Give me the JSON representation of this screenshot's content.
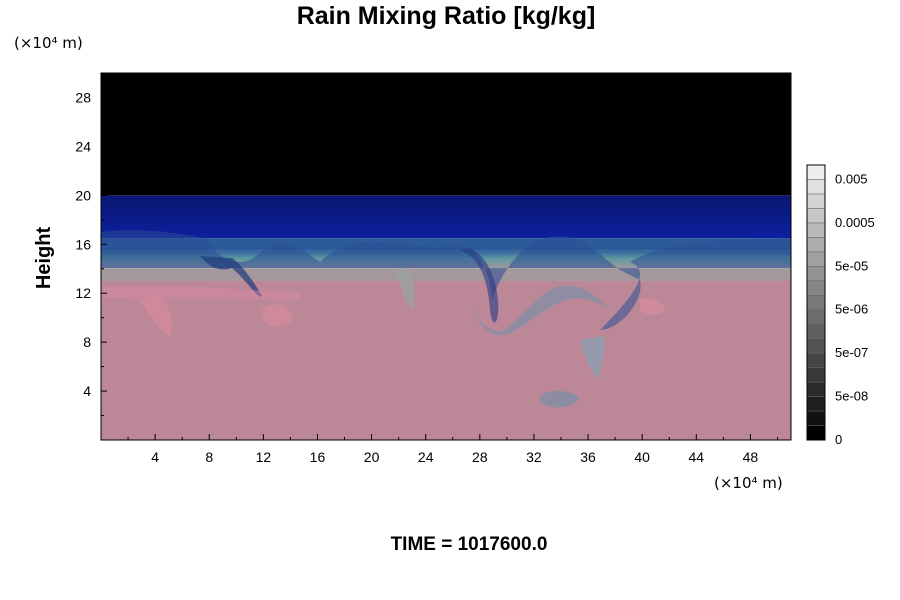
{
  "chart_data": {
    "type": "heatmap",
    "title": "Rain Mixing Ratio [kg/kg]",
    "ylabel": "Height",
    "x_unit_label": "(×10⁴ m)",
    "y_unit_label": "(×10⁴ m)",
    "xlim": [
      0,
      51
    ],
    "ylim": [
      0,
      30
    ],
    "x_ticks": [
      4,
      8,
      12,
      16,
      20,
      24,
      28,
      32,
      36,
      40,
      44,
      48
    ],
    "y_ticks": [
      4,
      8,
      12,
      16,
      20,
      24,
      28
    ],
    "x_tick_labels": [
      "4",
      "8",
      "12",
      "16",
      "20",
      "24",
      "28",
      "32",
      "36",
      "40",
      "44",
      "48"
    ],
    "y_tick_labels": [
      "4",
      "8",
      "12",
      "16",
      "20",
      "24",
      "28"
    ],
    "layers": [
      {
        "from": 20.0,
        "to": 30.0,
        "color": "#000000",
        "desc": "0"
      },
      {
        "from": 16.5,
        "to": 20.0,
        "color": "#0c1a8c"
      },
      {
        "from": 15.5,
        "to": 16.5,
        "color": "#2c5a9a"
      },
      {
        "from": 14.0,
        "to": 15.5,
        "color": "#6aa59c"
      },
      {
        "from": 13.0,
        "to": 14.0,
        "color": "#a5989c"
      },
      {
        "from": 0.0,
        "to": 13.0,
        "color": "#bc8898"
      }
    ],
    "colorbar": {
      "levels": [
        "#000000",
        "#111111",
        "#1e1e1e",
        "#2b2b2b",
        "#383838",
        "#454545",
        "#525252",
        "#5f5f5f",
        "#6c6c6c",
        "#797979",
        "#868686",
        "#939393",
        "#a0a0a0",
        "#adadad",
        "#bababa",
        "#c7c7c7",
        "#d4d4d4",
        "#e1e1e1",
        "#eeeeee"
      ],
      "tick_labels": [
        "0",
        "5e-08",
        "5e-07",
        "5e-06",
        "5e-05",
        "0.0005",
        "0.005"
      ]
    },
    "footer": "TIME = 1017600.0"
  }
}
